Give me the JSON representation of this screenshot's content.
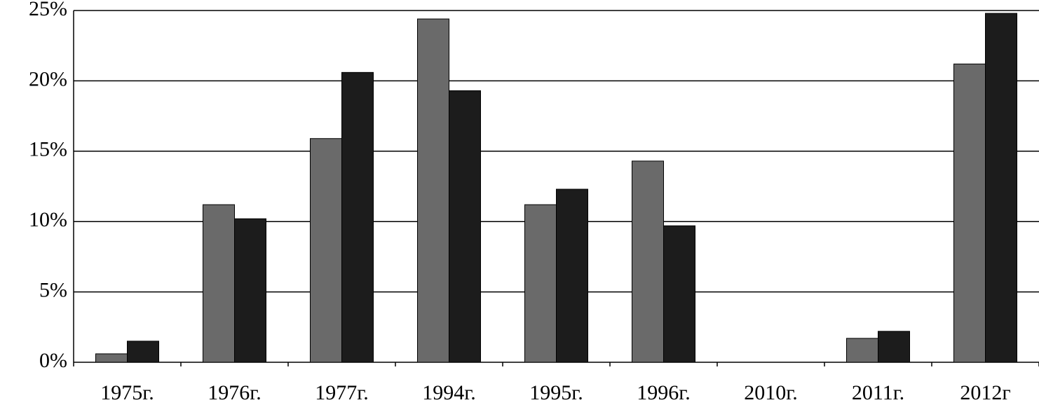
{
  "chart_data": {
    "type": "bar",
    "categories": [
      "1975г.",
      "1976г.",
      "1977г.",
      "1994г.",
      "1995г.",
      "1996г.",
      "2010г.",
      "2011г.",
      "2012г"
    ],
    "series": [
      {
        "color": "#6a6a6a",
        "values": [
          0.6,
          11.2,
          15.9,
          24.4,
          11.2,
          14.3,
          null,
          1.7,
          21.2
        ]
      },
      {
        "color": "#1c1c1c",
        "values": [
          1.5,
          10.2,
          20.6,
          19.3,
          12.3,
          9.7,
          null,
          2.2,
          24.8
        ]
      }
    ],
    "ylim": [
      0,
      25
    ],
    "yticks": [
      {
        "value": 0,
        "label": "0%"
      },
      {
        "value": 5,
        "label": "5%"
      },
      {
        "value": 10,
        "label": "10%"
      },
      {
        "value": 15,
        "label": "15%"
      },
      {
        "value": 20,
        "label": "20%"
      },
      {
        "value": 25,
        "label": "25%"
      }
    ],
    "grid": true
  }
}
